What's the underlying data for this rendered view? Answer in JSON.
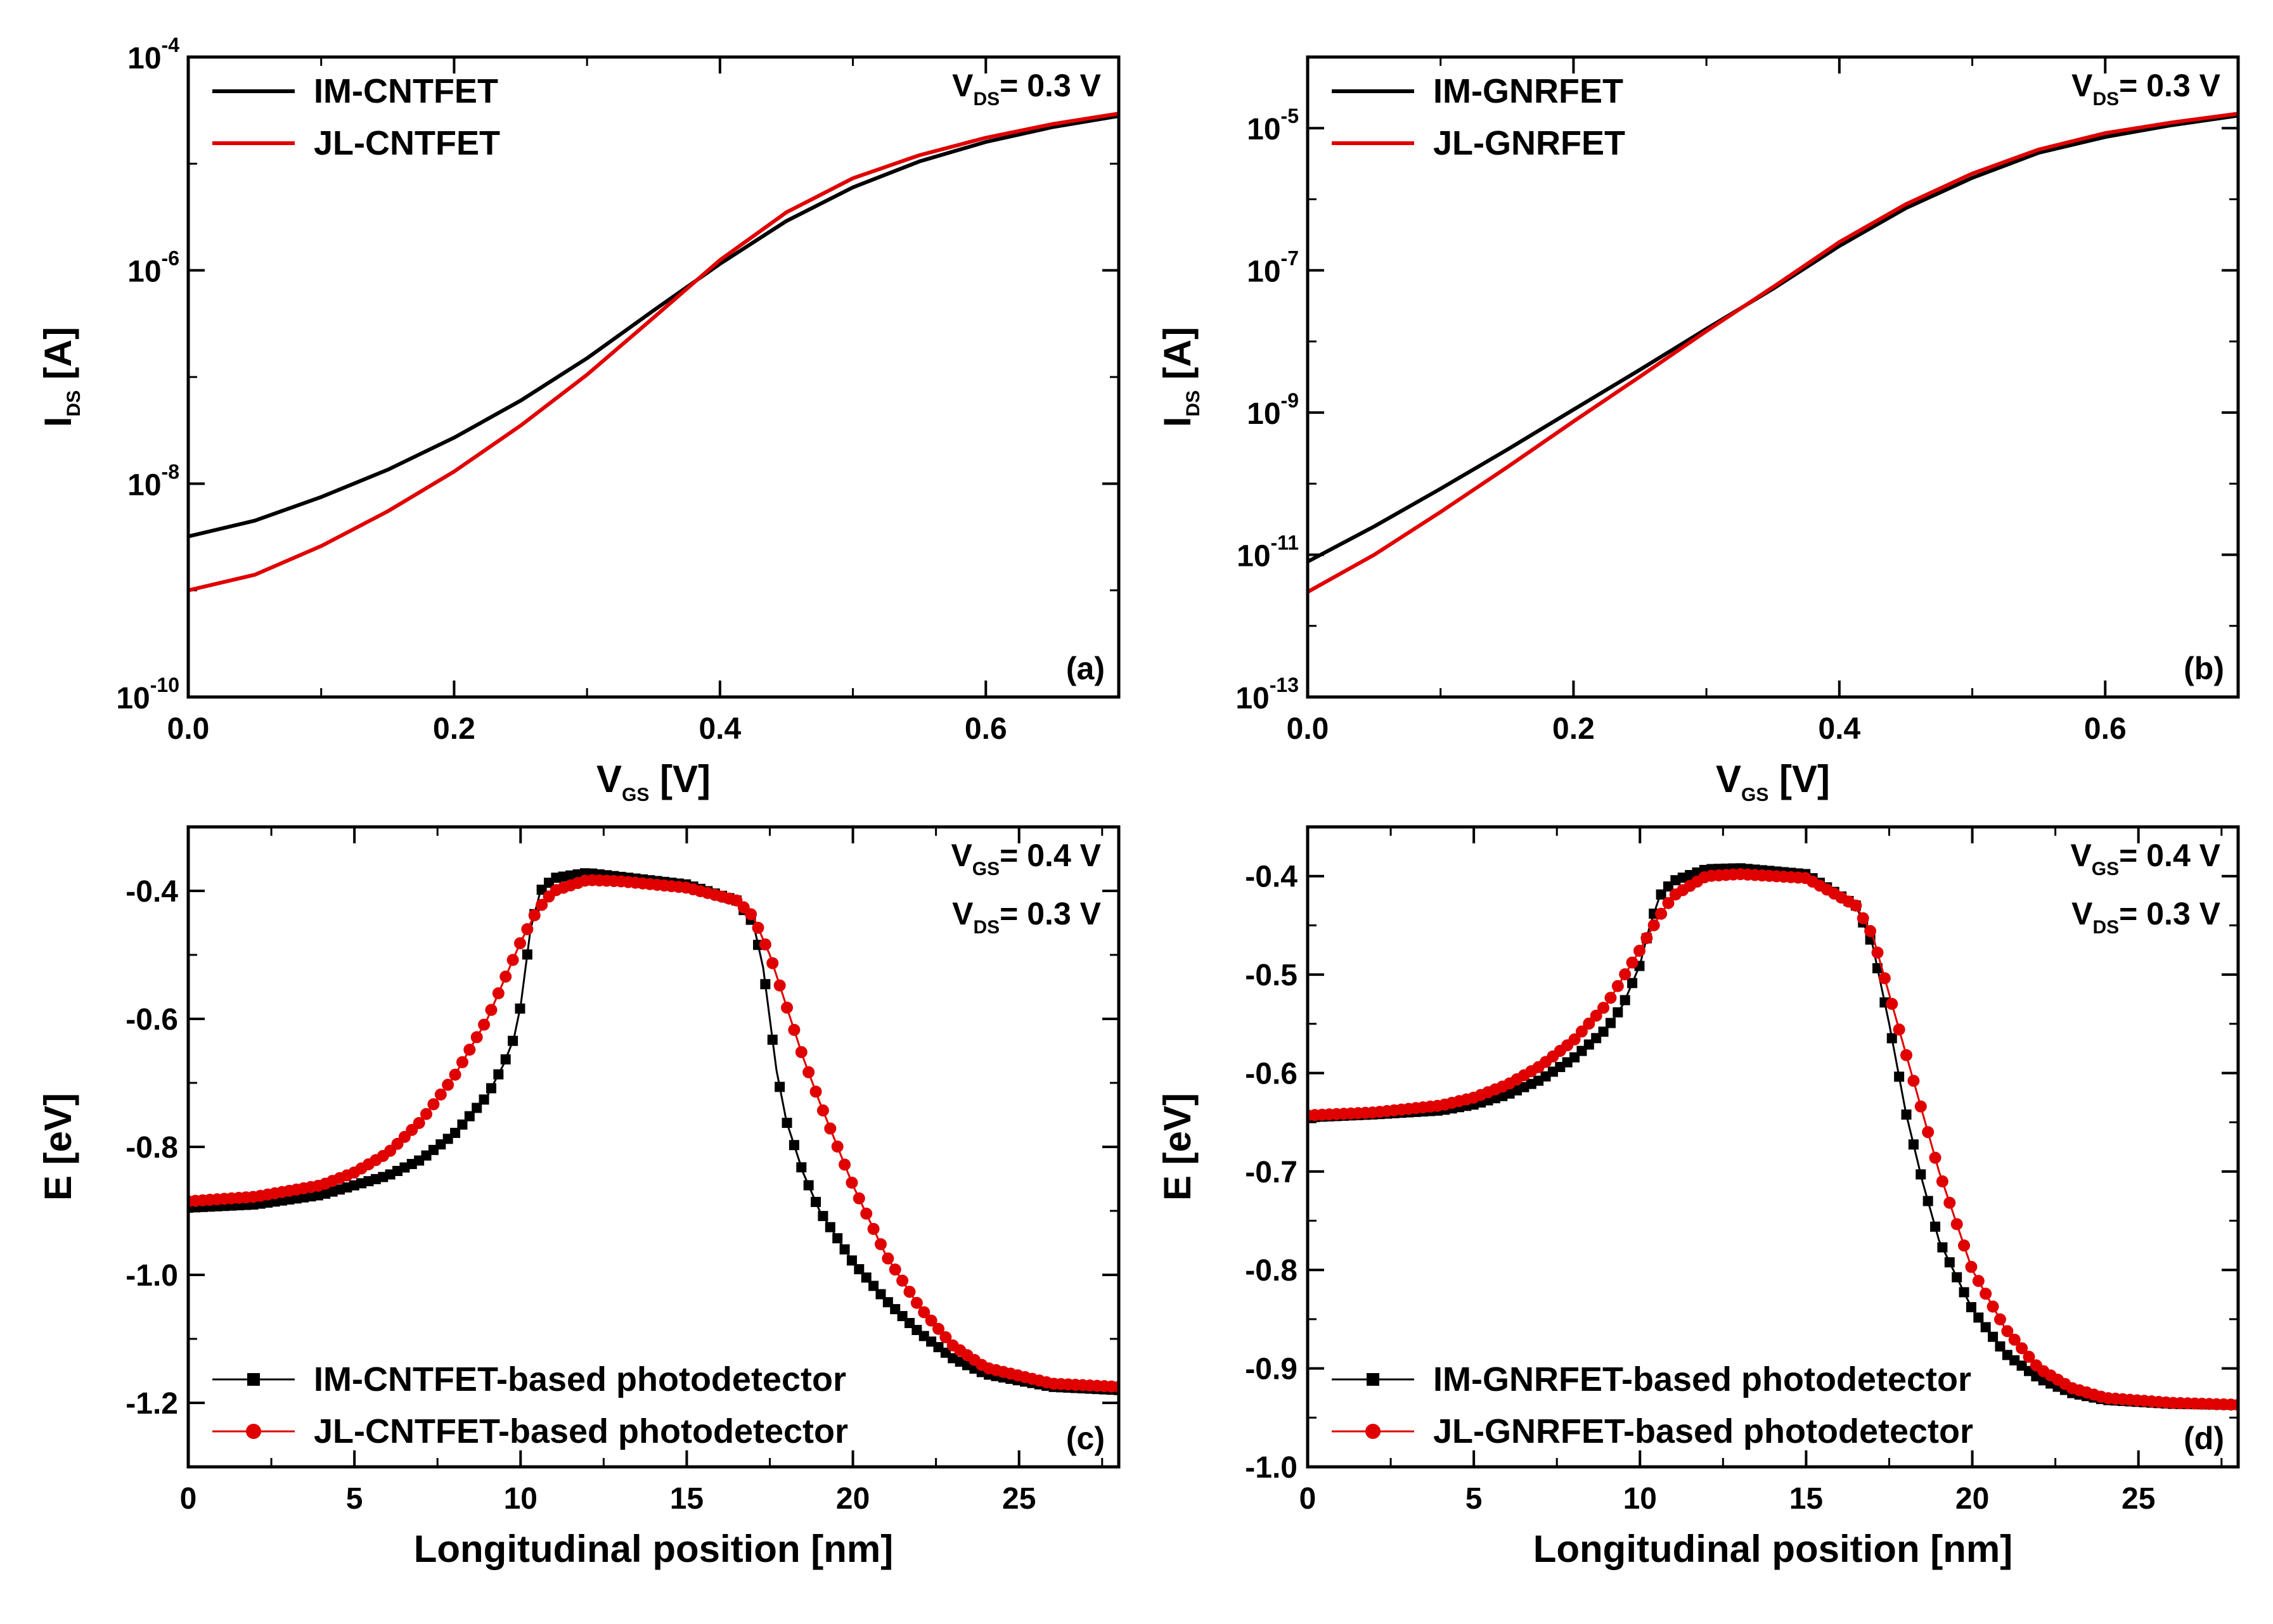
{
  "chart_data": [
    {
      "id": "a",
      "type": "line",
      "scale_y": "log",
      "panel_label": "(a)",
      "xlabel": {
        "main": "V",
        "sub": "GS",
        "unit": " [V]"
      },
      "ylabel": {
        "main": "I",
        "sub": "DS",
        "unit": " [A]"
      },
      "condition_lines": [
        {
          "main": "V",
          "sub": "DS",
          "rest": "= 0.3 V"
        }
      ],
      "xlim": [
        0,
        0.7
      ],
      "ylim": [
        1e-10,
        0.0001
      ],
      "x_ticks": [
        {
          "v": 0,
          "label": "0.0"
        },
        {
          "v": 0.2,
          "label": "0.2"
        },
        {
          "v": 0.4,
          "label": "0.4"
        },
        {
          "v": 0.6,
          "label": "0.6"
        }
      ],
      "y_ticks": [
        {
          "v": 1e-10,
          "base": "10",
          "exp": "-10"
        },
        {
          "v": 1e-08,
          "base": "10",
          "exp": "-8"
        },
        {
          "v": 1e-06,
          "base": "10",
          "exp": "-6"
        },
        {
          "v": 0.0001,
          "base": "10",
          "exp": "-4"
        }
      ],
      "series": [
        {
          "name": "IM-CNTFET",
          "color": "#000000",
          "marker": "none",
          "x": [
            0,
            0.05,
            0.1,
            0.15,
            0.2,
            0.25,
            0.3,
            0.35,
            0.4,
            0.45,
            0.5,
            0.55,
            0.6,
            0.65,
            0.7
          ],
          "y": [
            3.2e-09,
            4.5e-09,
            7.5e-09,
            1.35e-08,
            2.7e-08,
            6e-08,
            1.5e-07,
            4.2e-07,
            1.15e-06,
            2.9e-06,
            6e-06,
            1.05e-05,
            1.6e-05,
            2.2e-05,
            2.8e-05
          ]
        },
        {
          "name": "JL-CNTFET",
          "color": "#e00000",
          "marker": "none",
          "x": [
            0,
            0.05,
            0.1,
            0.15,
            0.2,
            0.25,
            0.3,
            0.35,
            0.4,
            0.45,
            0.5,
            0.55,
            0.6,
            0.65,
            0.7
          ],
          "y": [
            1e-09,
            1.4e-09,
            2.6e-09,
            5.5e-09,
            1.3e-08,
            3.5e-08,
            1.05e-07,
            3.6e-07,
            1.25e-06,
            3.5e-06,
            7.3e-06,
            1.2e-05,
            1.75e-05,
            2.35e-05,
            2.95e-05
          ]
        }
      ]
    },
    {
      "id": "b",
      "type": "line",
      "scale_y": "log",
      "panel_label": "(b)",
      "xlabel": {
        "main": "V",
        "sub": "GS",
        "unit": " [V]"
      },
      "ylabel": {
        "main": "I",
        "sub": "DS",
        "unit": " [A]"
      },
      "condition_lines": [
        {
          "main": "V",
          "sub": "DS",
          "rest": "= 0.3 V"
        }
      ],
      "xlim": [
        0,
        0.7
      ],
      "ylim": [
        1e-13,
        0.0001
      ],
      "x_ticks": [
        {
          "v": 0,
          "label": "0.0"
        },
        {
          "v": 0.2,
          "label": "0.2"
        },
        {
          "v": 0.4,
          "label": "0.4"
        },
        {
          "v": 0.6,
          "label": "0.6"
        }
      ],
      "y_ticks": [
        {
          "v": 1e-13,
          "base": "10",
          "exp": "-13"
        },
        {
          "v": 1e-11,
          "base": "10",
          "exp": "-11"
        },
        {
          "v": 1e-09,
          "base": "10",
          "exp": "-9"
        },
        {
          "v": 1e-07,
          "base": "10",
          "exp": "-7"
        },
        {
          "v": 1e-05,
          "base": "10",
          "exp": "-5"
        }
      ],
      "series": [
        {
          "name": "IM-GNRFET",
          "color": "#000000",
          "marker": "none",
          "x": [
            0,
            0.05,
            0.1,
            0.15,
            0.2,
            0.25,
            0.3,
            0.35,
            0.4,
            0.45,
            0.5,
            0.55,
            0.6,
            0.65,
            0.7
          ],
          "y": [
            8e-12,
            2.5e-11,
            8.5e-11,
            3e-10,
            1.1e-09,
            4e-09,
            1.5e-08,
            5.5e-08,
            2.2e-07,
            7.5e-07,
            2e-06,
            4.5e-06,
            7.5e-06,
            1.1e-05,
            1.5e-05
          ]
        },
        {
          "name": "JL-GNRFET",
          "color": "#e00000",
          "marker": "none",
          "x": [
            0,
            0.05,
            0.1,
            0.15,
            0.2,
            0.25,
            0.3,
            0.35,
            0.4,
            0.45,
            0.5,
            0.55,
            0.6,
            0.65,
            0.7
          ],
          "y": [
            3e-12,
            1e-11,
            4e-11,
            1.7e-10,
            7.5e-10,
            3.2e-09,
            1.4e-08,
            5.8e-08,
            2.5e-07,
            8.5e-07,
            2.3e-06,
            5e-06,
            8.5e-06,
            1.2e-05,
            1.6e-05
          ]
        }
      ]
    },
    {
      "id": "c",
      "type": "line",
      "scale_y": "linear",
      "panel_label": "(c)",
      "xlabel": {
        "main": "Longitudinal position [nm]",
        "sub": "",
        "unit": ""
      },
      "ylabel": {
        "main": "E [eV]",
        "sub": "",
        "unit": ""
      },
      "condition_lines": [
        {
          "main": "V",
          "sub": "GS",
          "rest": "= 0.4 V"
        },
        {
          "main": "V",
          "sub": "DS",
          "rest": "= 0.3 V"
        }
      ],
      "xlim": [
        0,
        28
      ],
      "ylim": [
        -1.3,
        -0.3
      ],
      "x_ticks": [
        {
          "v": 0,
          "label": "0"
        },
        {
          "v": 5,
          "label": "5"
        },
        {
          "v": 10,
          "label": "10"
        },
        {
          "v": 15,
          "label": "15"
        },
        {
          "v": 20,
          "label": "20"
        },
        {
          "v": 25,
          "label": "25"
        }
      ],
      "y_ticks": [
        {
          "v": -0.4,
          "label": "-0.4"
        },
        {
          "v": -0.6,
          "label": "-0.6"
        },
        {
          "v": -0.8,
          "label": "-0.8"
        },
        {
          "v": -1.0,
          "label": "-1.0"
        },
        {
          "v": -1.2,
          "label": "-1.2"
        }
      ],
      "series": [
        {
          "name": "IM-CNTFET-based photodetector",
          "color": "#000000",
          "marker": "square",
          "x": [
            0,
            2,
            4,
            6,
            7,
            8,
            9,
            9.5,
            9.8,
            10,
            10.3,
            10.6,
            11,
            12,
            13,
            15,
            16.5,
            17,
            17.3,
            17.5,
            17.7,
            18,
            18.5,
            19,
            20,
            21,
            22,
            23,
            24,
            26,
            28
          ],
          "y": [
            -0.895,
            -0.89,
            -0.875,
            -0.845,
            -0.82,
            -0.78,
            -0.72,
            -0.67,
            -0.63,
            -0.58,
            -0.46,
            -0.4,
            -0.38,
            -0.372,
            -0.378,
            -0.39,
            -0.415,
            -0.45,
            -0.52,
            -0.6,
            -0.68,
            -0.76,
            -0.84,
            -0.9,
            -0.98,
            -1.04,
            -1.09,
            -1.13,
            -1.155,
            -1.175,
            -1.18
          ]
        },
        {
          "name": "JL-CNTFET-based photodetector",
          "color": "#e00000",
          "marker": "circle",
          "x": [
            0,
            2,
            4,
            5,
            6,
            7,
            8,
            9,
            10,
            10.5,
            11,
            12,
            13,
            15,
            16.5,
            17,
            17.5,
            18,
            18.5,
            19,
            20,
            21,
            22,
            23,
            24,
            26,
            28
          ],
          "y": [
            -0.885,
            -0.878,
            -0.86,
            -0.84,
            -0.81,
            -0.76,
            -0.69,
            -0.6,
            -0.48,
            -0.43,
            -0.4,
            -0.383,
            -0.385,
            -0.395,
            -0.415,
            -0.44,
            -0.5,
            -0.58,
            -0.66,
            -0.73,
            -0.86,
            -0.97,
            -1.05,
            -1.11,
            -1.145,
            -1.17,
            -1.175
          ]
        }
      ],
      "legend_position": "bottom-left"
    },
    {
      "id": "d",
      "type": "line",
      "scale_y": "linear",
      "panel_label": "(d)",
      "xlabel": {
        "main": "Longitudinal position [nm]",
        "sub": "",
        "unit": ""
      },
      "ylabel": {
        "main": "E [eV]",
        "sub": "",
        "unit": ""
      },
      "condition_lines": [
        {
          "main": "V",
          "sub": "GS",
          "rest": "= 0.4 V"
        },
        {
          "main": "V",
          "sub": "DS",
          "rest": "= 0.3 V"
        }
      ],
      "xlim": [
        0,
        28
      ],
      "ylim": [
        -1.0,
        -0.35
      ],
      "x_ticks": [
        {
          "v": 0,
          "label": "0"
        },
        {
          "v": 5,
          "label": "5"
        },
        {
          "v": 10,
          "label": "10"
        },
        {
          "v": 15,
          "label": "15"
        },
        {
          "v": 20,
          "label": "20"
        },
        {
          "v": 25,
          "label": "25"
        }
      ],
      "y_ticks": [
        {
          "v": -0.4,
          "label": "-0.4"
        },
        {
          "v": -0.5,
          "label": "-0.5"
        },
        {
          "v": -0.6,
          "label": "-0.6"
        },
        {
          "v": -0.7,
          "label": "-0.7"
        },
        {
          "v": -0.8,
          "label": "-0.8"
        },
        {
          "v": -0.9,
          "label": "-0.9"
        },
        {
          "v": -1.0,
          "label": "-1.0"
        }
      ],
      "series": [
        {
          "name": "IM-GNRFET-based photodetector",
          "color": "#000000",
          "marker": "square",
          "x": [
            0,
            2,
            4,
            5,
            6,
            7,
            8,
            9,
            9.5,
            10,
            10.3,
            10.6,
            11,
            12,
            13,
            15,
            16.5,
            17,
            17.5,
            18,
            18.5,
            19,
            20,
            21,
            22,
            23,
            24,
            26,
            28
          ],
          "y": [
            -0.645,
            -0.642,
            -0.638,
            -0.632,
            -0.622,
            -0.607,
            -0.585,
            -0.555,
            -0.53,
            -0.49,
            -0.45,
            -0.42,
            -0.405,
            -0.393,
            -0.392,
            -0.398,
            -0.43,
            -0.47,
            -0.55,
            -0.64,
            -0.71,
            -0.77,
            -0.84,
            -0.885,
            -0.91,
            -0.925,
            -0.932,
            -0.936,
            -0.937
          ]
        },
        {
          "name": "JL-GNRFET-based photodetector",
          "color": "#e00000",
          "marker": "circle",
          "x": [
            0,
            2,
            4,
            5,
            6,
            7,
            8,
            9,
            10,
            10.5,
            11,
            12,
            13,
            15,
            16.5,
            17,
            17.5,
            18,
            18.5,
            19,
            19.5,
            20,
            21,
            22,
            23,
            24,
            26,
            28
          ],
          "y": [
            -0.643,
            -0.64,
            -0.633,
            -0.625,
            -0.612,
            -0.593,
            -0.567,
            -0.53,
            -0.475,
            -0.445,
            -0.42,
            -0.4,
            -0.398,
            -0.402,
            -0.43,
            -0.46,
            -0.52,
            -0.58,
            -0.64,
            -0.7,
            -0.75,
            -0.8,
            -0.86,
            -0.9,
            -0.92,
            -0.93,
            -0.935,
            -0.937
          ]
        }
      ],
      "legend_position": "bottom-left"
    }
  ]
}
